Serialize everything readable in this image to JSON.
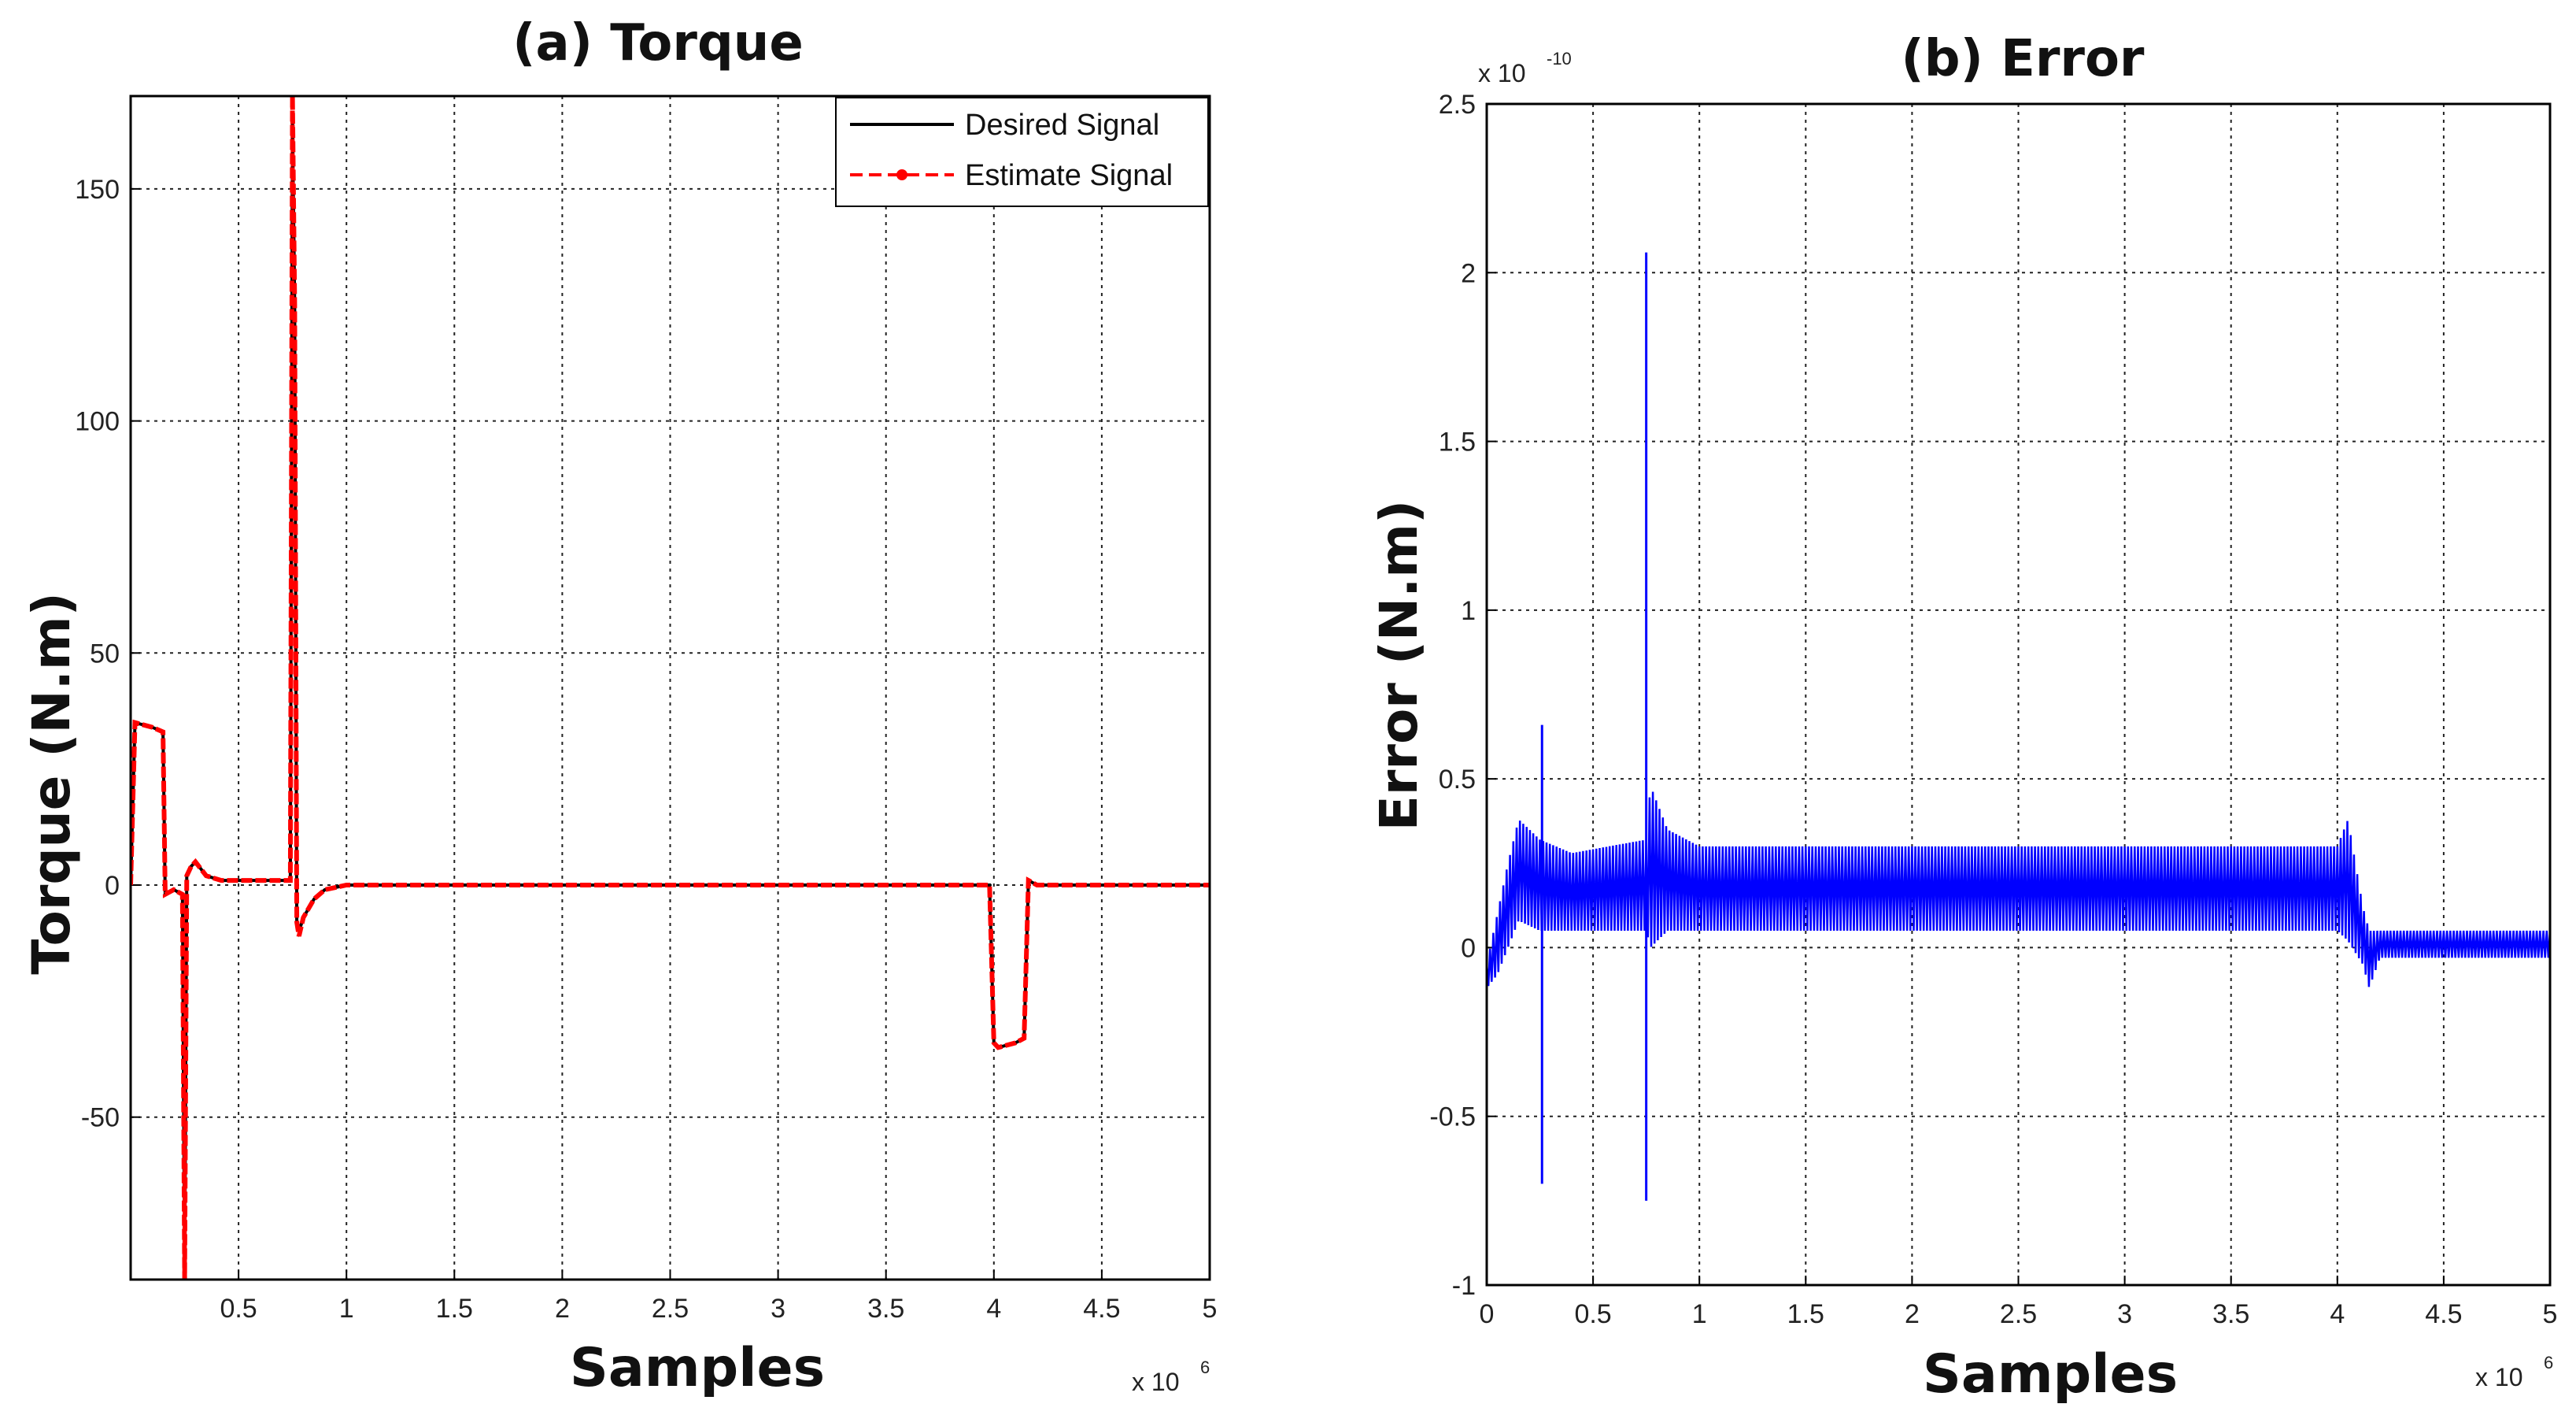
{
  "chart_data": [
    {
      "type": "line",
      "title": "(a)  Torque",
      "xlabel": "Samples",
      "ylabel": "Torque (N.m)",
      "x_multiplier": "x 10",
      "x_multiplier_exp": "6",
      "xlim": [
        0,
        5
      ],
      "ylim": [
        -85,
        170
      ],
      "xticks": [
        0.5,
        1,
        1.5,
        2,
        2.5,
        3,
        3.5,
        4,
        4.5,
        5
      ],
      "xtick_labels": [
        "0.5",
        "1",
        "1.5",
        "2",
        "2.5",
        "3",
        "3.5",
        "4",
        "4.5",
        "5"
      ],
      "yticks": [
        -50,
        0,
        50,
        100,
        150
      ],
      "ytick_labels": [
        "-50",
        "0",
        "50",
        "100",
        "150"
      ],
      "grid": true,
      "legend_position": "top-right",
      "series": [
        {
          "name": "Desired Signal",
          "color": "#000000",
          "style": "solid",
          "x": [
            0,
            0.02,
            0.1,
            0.15,
            0.16,
            0.2,
            0.24,
            0.25,
            0.26,
            0.28,
            0.3,
            0.35,
            0.42,
            0.5,
            0.74,
            0.75,
            0.76,
            0.77,
            0.78,
            0.8,
            0.85,
            0.9,
            1.0,
            1.1,
            1.5,
            2.0,
            2.5,
            3.0,
            3.5,
            3.98,
            4.0,
            4.02,
            4.1,
            4.14,
            4.16,
            4.2,
            4.5,
            5.0
          ],
          "y": [
            0,
            35,
            34,
            33,
            -2,
            -1,
            -2,
            -85,
            2,
            4,
            5,
            2,
            1,
            1,
            1,
            165,
            125,
            -8,
            -10,
            -7,
            -3,
            -1,
            0,
            0,
            0,
            0,
            0,
            0,
            0,
            0,
            -34,
            -35,
            -34,
            -33,
            1,
            0,
            0,
            0
          ]
        },
        {
          "name": "Estimate Signal",
          "color": "#ff0000",
          "style": "dashed",
          "marker": "point",
          "x": [
            0,
            0.02,
            0.1,
            0.15,
            0.16,
            0.2,
            0.24,
            0.25,
            0.26,
            0.28,
            0.3,
            0.35,
            0.42,
            0.5,
            0.74,
            0.75,
            0.76,
            0.77,
            0.78,
            0.8,
            0.85,
            0.9,
            1.0,
            1.1,
            1.5,
            2.0,
            2.5,
            3.0,
            3.5,
            3.98,
            4.0,
            4.02,
            4.1,
            4.14,
            4.16,
            4.2,
            4.5,
            5.0
          ],
          "y": [
            0,
            35,
            34,
            33,
            -2,
            -1,
            -2,
            -85,
            2,
            4,
            5,
            2,
            1,
            1,
            1,
            170,
            125,
            -8,
            -11,
            -7,
            -3,
            -1,
            0,
            0,
            0,
            0,
            0,
            0,
            0,
            0,
            -34,
            -35,
            -34,
            -33,
            1,
            0,
            0,
            0
          ]
        }
      ]
    },
    {
      "type": "line",
      "title": "(b)  Error",
      "xlabel": "Samples",
      "ylabel": "Error (N.m)",
      "x_multiplier": "x 10",
      "x_multiplier_exp": "6",
      "y_multiplier": "x 10",
      "y_multiplier_exp": "-10",
      "xlim": [
        0,
        5
      ],
      "ylim": [
        -1,
        2.5
      ],
      "xticks": [
        0,
        0.5,
        1,
        1.5,
        2,
        2.5,
        3,
        3.5,
        4,
        4.5,
        5
      ],
      "xtick_labels": [
        "0",
        "0.5",
        "1",
        "1.5",
        "2",
        "2.5",
        "3",
        "3.5",
        "4",
        "4.5",
        "5"
      ],
      "yticks": [
        -1,
        -0.5,
        0,
        0.5,
        1,
        1.5,
        2,
        2.5
      ],
      "ytick_labels": [
        "-1",
        "-0.5",
        "0",
        "0.5",
        "1",
        "1.5",
        "2",
        "2.5"
      ],
      "grid": true,
      "series": [
        {
          "name": "Error",
          "color": "#0000ff",
          "style": "solid",
          "envelope_x": [
            0,
            0.05,
            0.1,
            0.15,
            0.25,
            0.4,
            0.75,
            0.77,
            0.85,
            1.0,
            2.0,
            3.0,
            4.0,
            4.05,
            4.12,
            4.15,
            4.2,
            4.5,
            5.0
          ],
          "envelope_upper": [
            -0.05,
            0.1,
            0.25,
            0.38,
            0.32,
            0.28,
            0.32,
            0.48,
            0.35,
            0.3,
            0.3,
            0.3,
            0.3,
            0.38,
            0.12,
            0.05,
            0.05,
            0.05,
            0.05
          ],
          "envelope_lower": [
            -0.12,
            -0.08,
            0.0,
            0.08,
            0.05,
            0.05,
            0.05,
            0.0,
            0.05,
            0.05,
            0.05,
            0.05,
            0.05,
            0.02,
            -0.05,
            -0.12,
            -0.03,
            -0.03,
            -0.03
          ],
          "spikes": [
            {
              "x": 0.26,
              "high": 0.66,
              "low": -0.7
            },
            {
              "x": 0.75,
              "high": 2.06,
              "low": -0.75
            }
          ]
        }
      ]
    }
  ]
}
